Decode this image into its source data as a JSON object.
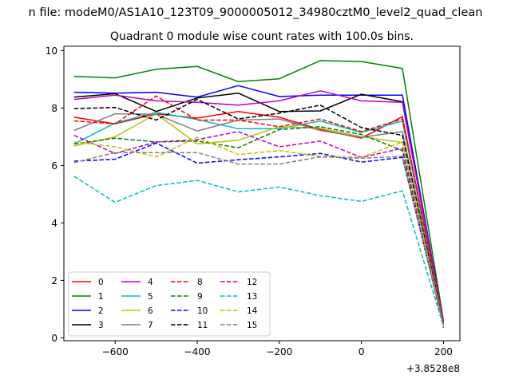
{
  "chart_data": {
    "type": "line",
    "suptitle": "n file: modeM0/AS1A10_123T09_9000005012_34980cztM0_level2_quad_clean",
    "title": "Quadrant 0 module wise count rates with 100.0s bins.",
    "xlabel": "",
    "ylabel": "",
    "x_offset_label": "+3.8528e8",
    "xlim": [
      -725,
      240
    ],
    "ylim": [
      -0.1,
      10.15
    ],
    "xticks": [
      -600,
      -400,
      -200,
      0,
      200
    ],
    "xtick_labels": [
      "−600",
      "−400",
      "−200",
      "0",
      "200"
    ],
    "yticks": [
      0,
      2,
      4,
      6,
      8,
      10
    ],
    "ytick_labels": [
      "0",
      "2",
      "4",
      "6",
      "8",
      "10"
    ],
    "legend_position": "lower-left",
    "legend_columns": 4,
    "x": [
      -700,
      -600,
      -500,
      -400,
      -300,
      -200,
      -100,
      0,
      100,
      200
    ],
    "series": [
      {
        "name": "0",
        "color": "#ff0000",
        "dash": "solid",
        "values": [
          7.68,
          7.45,
          7.8,
          7.65,
          7.88,
          7.68,
          7.25,
          6.95,
          7.7,
          0.55
        ]
      },
      {
        "name": "1",
        "color": "#008000",
        "dash": "solid",
        "values": [
          9.1,
          9.05,
          9.35,
          9.45,
          8.92,
          9.02,
          9.65,
          9.62,
          9.38,
          0.6
        ]
      },
      {
        "name": "2",
        "color": "#0000ff",
        "dash": "solid",
        "values": [
          8.55,
          8.52,
          8.55,
          8.38,
          8.78,
          8.4,
          8.45,
          8.45,
          8.45,
          0.55
        ]
      },
      {
        "name": "3",
        "color": "#000000",
        "dash": "solid",
        "values": [
          8.38,
          8.5,
          7.88,
          8.35,
          8.52,
          7.88,
          7.9,
          8.48,
          8.22,
          0.55
        ]
      },
      {
        "name": "4",
        "color": "#bf00bf",
        "dash": "solid",
        "values": [
          8.3,
          8.45,
          8.25,
          8.2,
          8.1,
          8.25,
          8.6,
          8.25,
          8.2,
          0.55
        ]
      },
      {
        "name": "5",
        "color": "#00bfbf",
        "dash": "solid",
        "values": [
          6.75,
          7.48,
          7.85,
          7.6,
          7.28,
          7.28,
          7.55,
          7.15,
          7.55,
          0.5
        ]
      },
      {
        "name": "6",
        "color": "#bfbf00",
        "dash": "solid",
        "values": [
          6.68,
          7.0,
          7.8,
          6.75,
          6.88,
          7.35,
          7.3,
          7.0,
          6.8,
          0.5
        ]
      },
      {
        "name": "7",
        "color": "#808080",
        "dash": "solid",
        "values": [
          7.22,
          7.8,
          7.78,
          7.2,
          7.58,
          7.62,
          7.22,
          6.98,
          7.18,
          0.45
        ]
      },
      {
        "name": "8",
        "color": "#ff0000",
        "dash": "dashed",
        "values": [
          7.55,
          7.45,
          8.42,
          7.58,
          7.58,
          7.35,
          7.62,
          7.18,
          7.62,
          0.55
        ]
      },
      {
        "name": "9",
        "color": "#008000",
        "dash": "dashed",
        "values": [
          6.75,
          6.95,
          6.82,
          6.85,
          6.62,
          7.25,
          7.35,
          7.08,
          6.52,
          0.35
        ]
      },
      {
        "name": "10",
        "color": "#0000ff",
        "dash": "dashed",
        "values": [
          6.15,
          6.22,
          6.78,
          6.08,
          6.2,
          6.3,
          6.42,
          6.12,
          6.28,
          0.45
        ]
      },
      {
        "name": "11",
        "color": "#000000",
        "dash": "dashed",
        "values": [
          7.98,
          8.02,
          7.58,
          8.3,
          7.62,
          7.82,
          8.1,
          7.32,
          7.05,
          0.45
        ]
      },
      {
        "name": "12",
        "color": "#bf00bf",
        "dash": "dashed",
        "values": [
          7.05,
          6.42,
          6.82,
          6.9,
          7.18,
          6.65,
          6.85,
          6.28,
          6.6,
          0.5
        ]
      },
      {
        "name": "13",
        "color": "#00bfbf",
        "dash": "dashed",
        "values": [
          5.62,
          4.72,
          5.3,
          5.48,
          5.08,
          5.25,
          4.95,
          4.75,
          5.12,
          0.4
        ]
      },
      {
        "name": "14",
        "color": "#bfbf00",
        "dash": "dashed",
        "values": [
          6.82,
          6.65,
          6.3,
          6.98,
          6.38,
          6.52,
          6.32,
          6.28,
          6.82,
          0.4
        ]
      },
      {
        "name": "15",
        "color": "#808080",
        "dash": "dashed",
        "values": [
          6.1,
          6.45,
          6.45,
          6.45,
          6.05,
          6.05,
          6.3,
          6.25,
          6.32,
          0.45
        ]
      }
    ]
  }
}
